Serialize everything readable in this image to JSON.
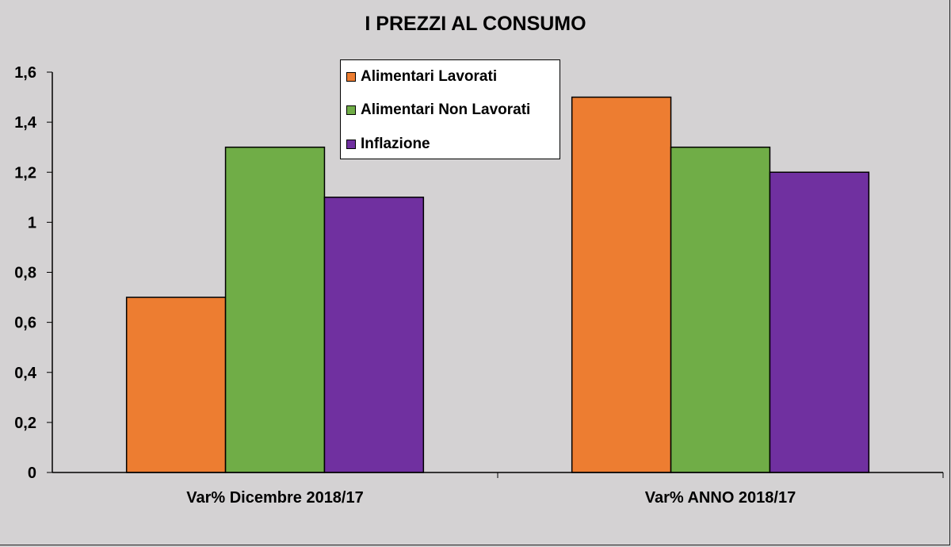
{
  "chart_data": {
    "type": "bar",
    "title": "I PREZZI AL CONSUMO",
    "categories": [
      "Var% Dicembre 2018/17",
      "Var% ANNO 2018/17"
    ],
    "series": [
      {
        "name": "Alimentari Lavorati",
        "values": [
          0.7,
          1.5
        ],
        "color": "#ed7d31"
      },
      {
        "name": "Alimentari Non Lavorati",
        "values": [
          1.3,
          1.3
        ],
        "color": "#70ad47"
      },
      {
        "name": "Inflazione",
        "values": [
          1.1,
          1.2
        ],
        "color": "#7030a0"
      }
    ],
    "ylim": [
      0,
      1.6
    ],
    "yticks": [
      "0",
      "0,2",
      "0,4",
      "0,6",
      "0,8",
      "1",
      "1,2",
      "1,4",
      "1,6"
    ],
    "grid": false,
    "legend": "top-center"
  }
}
